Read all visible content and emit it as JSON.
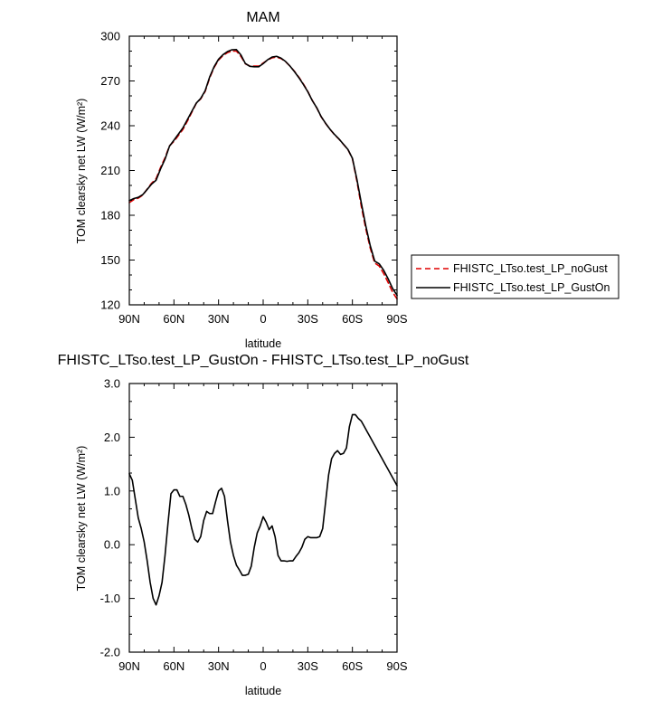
{
  "chart_data": [
    {
      "type": "line",
      "title": "MAM",
      "xlabel": "latitude",
      "ylabel": "TOM clearsky net LW (W/m²)",
      "xlim": [
        90,
        -90
      ],
      "ylim": [
        120,
        300
      ],
      "xticks": [
        {
          "v": 90,
          "label": "90N"
        },
        {
          "v": 60,
          "label": "60N"
        },
        {
          "v": 30,
          "label": "30N"
        },
        {
          "v": 0,
          "label": "0"
        },
        {
          "v": -30,
          "label": "30S"
        },
        {
          "v": -60,
          "label": "60S"
        },
        {
          "v": -90,
          "label": "90S"
        }
      ],
      "yticks": [
        120,
        150,
        180,
        210,
        240,
        270,
        300
      ],
      "legend_position": "right",
      "series": [
        {
          "name": "FHISTC_LTso.test_LP_noGust",
          "color": "#e00000",
          "dash": "dashed",
          "x": [
            90,
            87,
            84,
            81,
            78,
            75,
            72,
            69,
            66,
            63,
            60,
            57,
            54,
            51,
            48,
            45,
            42,
            39,
            36,
            33,
            30,
            27,
            24,
            21,
            18,
            15,
            12,
            9,
            6,
            3,
            0,
            -3,
            -6,
            -9,
            -12,
            -15,
            -18,
            -21,
            -24,
            -27,
            -30,
            -33,
            -36,
            -39,
            -42,
            -45,
            -48,
            -51,
            -54,
            -57,
            -60,
            -63,
            -66,
            -69,
            -72,
            -75,
            -78,
            -81,
            -84,
            -87,
            -90
          ],
          "y": [
            188.5,
            190.5,
            191.5,
            193.5,
            197.5,
            201.5,
            204.5,
            212.0,
            218.5,
            226.5,
            229.5,
            233.5,
            237.5,
            243.0,
            249.0,
            255.0,
            258.0,
            263.0,
            272.0,
            279.0,
            284.0,
            287.0,
            289.0,
            290.0,
            290.0,
            286.5,
            281.5,
            280.0,
            280.0,
            280.0,
            282.0,
            284.0,
            285.5,
            286.0,
            285.0,
            283.0,
            280.0,
            276.5,
            272.5,
            268.0,
            263.0,
            257.0,
            252.0,
            246.0,
            241.5,
            237.5,
            234.0,
            231.0,
            227.5,
            224.0,
            218.0,
            203.0,
            186.0,
            171.0,
            158.0,
            148.0,
            146.0,
            141.0,
            135.0,
            128.5,
            124.0
          ]
        },
        {
          "name": "FHISTC_LTso.test_LP_GustOn",
          "color": "#000000",
          "dash": "solid",
          "x": [
            90,
            87,
            84,
            81,
            78,
            75,
            72,
            69,
            66,
            63,
            60,
            57,
            54,
            51,
            48,
            45,
            42,
            39,
            36,
            33,
            30,
            27,
            24,
            21,
            18,
            15,
            12,
            9,
            6,
            3,
            0,
            -3,
            -6,
            -9,
            -12,
            -15,
            -18,
            -21,
            -24,
            -27,
            -30,
            -33,
            -36,
            -39,
            -42,
            -45,
            -48,
            -51,
            -54,
            -57,
            -60,
            -63,
            -66,
            -69,
            -72,
            -75,
            -78,
            -81,
            -84,
            -87,
            -90
          ],
          "y": [
            189.8,
            191.2,
            192.0,
            193.8,
            197.3,
            200.9,
            203.5,
            211.0,
            217.6,
            226.3,
            230.3,
            234.4,
            238.5,
            244.0,
            249.6,
            255.1,
            258.3,
            263.5,
            272.6,
            279.5,
            284.6,
            287.6,
            289.7,
            290.9,
            291.0,
            287.5,
            281.7,
            279.8,
            279.5,
            279.5,
            281.6,
            284.2,
            286.0,
            286.5,
            285.3,
            283.1,
            280.0,
            276.3,
            272.2,
            267.7,
            262.8,
            256.9,
            252.1,
            246.1,
            241.6,
            237.6,
            234.1,
            231.1,
            227.6,
            224.1,
            218.2,
            204.2,
            188.2,
            172.9,
            159.6,
            149.3,
            147.5,
            143.2,
            137.5,
            131.0,
            126.4
          ]
        }
      ]
    },
    {
      "type": "line",
      "title": "FHISTC_LTso.test_LP_GustOn - FHISTC_LTso.test_LP_noGust",
      "xlabel": "latitude",
      "ylabel": "TOM clearsky net LW (W/m²)",
      "xlim": [
        90,
        -90
      ],
      "ylim": [
        -2.0,
        3.0
      ],
      "xticks": [
        {
          "v": 90,
          "label": "90N"
        },
        {
          "v": 60,
          "label": "60N"
        },
        {
          "v": 30,
          "label": "30N"
        },
        {
          "v": 0,
          "label": "0"
        },
        {
          "v": -30,
          "label": "30S"
        },
        {
          "v": -60,
          "label": "60S"
        },
        {
          "v": -90,
          "label": "90S"
        }
      ],
      "yticks": [
        {
          "v": -2.0,
          "label": "-2.0"
        },
        {
          "v": -1.0,
          "label": "-1.0"
        },
        {
          "v": 0.0,
          "label": "0.0"
        },
        {
          "v": 1.0,
          "label": "1.0"
        },
        {
          "v": 2.0,
          "label": "2.0"
        },
        {
          "v": 3.0,
          "label": "3.0"
        }
      ],
      "series": [
        {
          "color": "#000000",
          "dash": "solid",
          "x": [
            90,
            88,
            86,
            84,
            82,
            80,
            78,
            76,
            74,
            72,
            70,
            68,
            66,
            64,
            62,
            60,
            58,
            56,
            54,
            52,
            50,
            48,
            46,
            44,
            42,
            40,
            38,
            36,
            34,
            32,
            30,
            28,
            26,
            24,
            22,
            20,
            18,
            16,
            14,
            12,
            10,
            8,
            6,
            4,
            2,
            0,
            -2,
            -4,
            -6,
            -8,
            -10,
            -12,
            -14,
            -16,
            -18,
            -20,
            -22,
            -24,
            -26,
            -28,
            -30,
            -32,
            -34,
            -36,
            -38,
            -40,
            -42,
            -44,
            -46,
            -48,
            -50,
            -52,
            -54,
            -56,
            -58,
            -60,
            -62,
            -64,
            -66,
            -68,
            -70,
            -72,
            -74,
            -76,
            -78,
            -80,
            -82,
            -84,
            -86,
            -88,
            -90
          ],
          "y": [
            1.32,
            1.2,
            0.85,
            0.5,
            0.3,
            0.05,
            -0.3,
            -0.7,
            -1.0,
            -1.12,
            -0.95,
            -0.7,
            -0.2,
            0.4,
            0.95,
            1.02,
            1.02,
            0.9,
            0.9,
            0.75,
            0.55,
            0.3,
            0.1,
            0.05,
            0.15,
            0.45,
            0.62,
            0.58,
            0.58,
            0.8,
            1.0,
            1.05,
            0.9,
            0.45,
            0.05,
            -0.2,
            -0.38,
            -0.47,
            -0.57,
            -0.57,
            -0.55,
            -0.4,
            -0.05,
            0.22,
            0.35,
            0.52,
            0.42,
            0.28,
            0.35,
            0.15,
            -0.2,
            -0.3,
            -0.3,
            -0.31,
            -0.3,
            -0.3,
            -0.22,
            -0.15,
            -0.05,
            0.1,
            0.15,
            0.13,
            0.13,
            0.13,
            0.15,
            0.3,
            0.8,
            1.3,
            1.6,
            1.7,
            1.75,
            1.68,
            1.7,
            1.8,
            2.2,
            2.42,
            2.42,
            2.35,
            2.3,
            2.2,
            2.1,
            2.0,
            1.9,
            1.8,
            1.7,
            1.6,
            1.5,
            1.4,
            1.3,
            1.2,
            1.1
          ]
        }
      ]
    }
  ]
}
